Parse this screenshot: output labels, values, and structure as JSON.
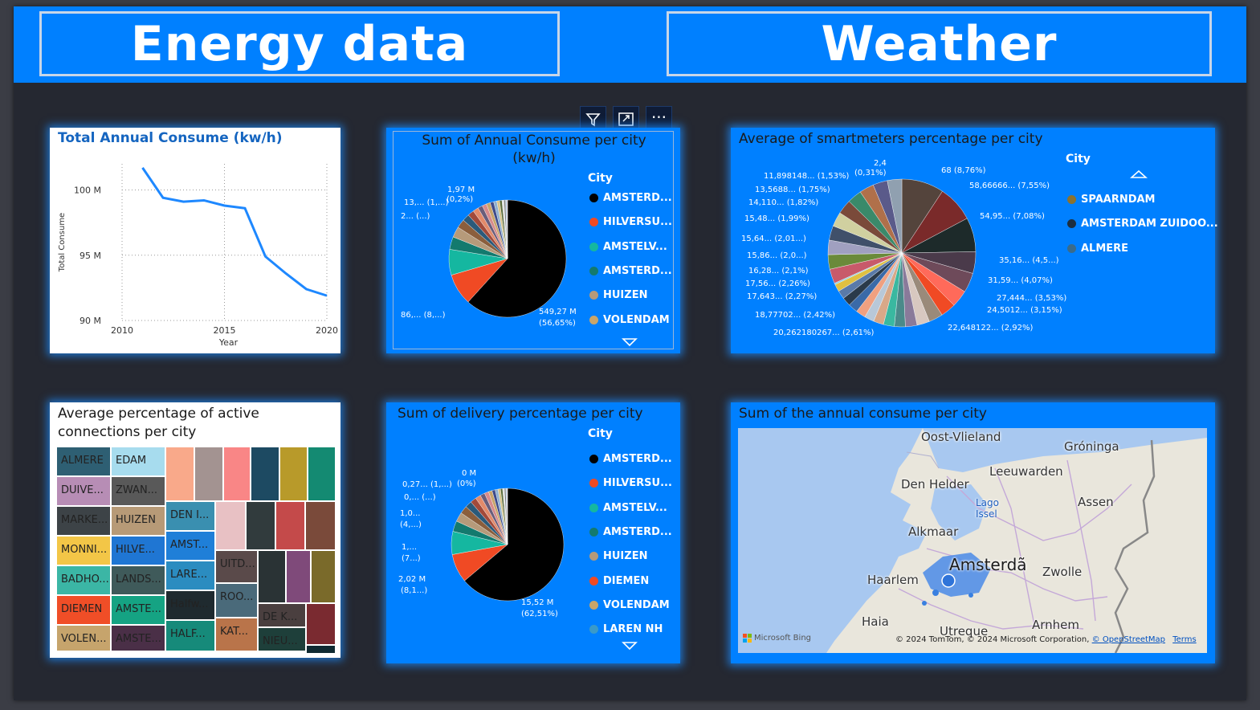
{
  "banner": {
    "energy_title": "Energy data",
    "weather_title": "Weather"
  },
  "toolbar": {
    "filter_icon": "filter-icon",
    "focus_icon": "focus-mode-icon",
    "more_icon": "more-options-icon",
    "more_label": "···"
  },
  "line_tile": {
    "title": "Total Annual Consume (kw/h)",
    "chart_data": {
      "type": "line",
      "title": "Total Annual Consume (kw/h)",
      "xlabel": "Year",
      "ylabel": "Total Consume",
      "x": [
        2011,
        2012,
        2013,
        2014,
        2015,
        2016,
        2017,
        2018,
        2019,
        2020
      ],
      "values": [
        101.7,
        99.4,
        99.1,
        99.2,
        98.8,
        98.6,
        94.9,
        93.6,
        92.4,
        91.9
      ],
      "ylim": [
        90,
        102
      ],
      "xlim": [
        2010,
        2020
      ],
      "yticks": [
        "100 M",
        "95 M",
        "90 M"
      ],
      "xticks": [
        "2010",
        "2015",
        "2020"
      ],
      "color": "#1e88ff"
    }
  },
  "pie1": {
    "title": "Sum of Annual Consume per city (kw/h)",
    "legend_title": "City",
    "legend": [
      {
        "name": "AMSTERD...",
        "color": "#000000"
      },
      {
        "name": "HILVERSU...",
        "color": "#f04a24"
      },
      {
        "name": "AMSTELV...",
        "color": "#15b7a0"
      },
      {
        "name": "AMSTERD...",
        "color": "#137a6e"
      },
      {
        "name": "HUIZEN",
        "color": "#b69a7a"
      },
      {
        "name": "VOLENDAM",
        "color": "#c8a56a"
      }
    ],
    "chart_data": {
      "type": "pie",
      "slices": [
        56.65,
        8.0,
        6.5,
        3.2,
        2.7,
        2.2,
        1.8,
        1.6,
        1.4,
        1.2,
        1.1,
        1.0,
        0.9,
        0.8,
        0.7,
        0.6,
        0.5,
        0.4,
        0.3,
        0.2
      ],
      "colors": [
        "#000000",
        "#f04a24",
        "#15b7a0",
        "#137a6e",
        "#b69a7a",
        "#8b5e3c",
        "#2b5a7a",
        "#a34a3a",
        "#e38a6a",
        "#6a5d7a",
        "#d88b8b",
        "#c8a56a",
        "#3e4b8a",
        "#8fb0d0",
        "#d6c48a",
        "#5a6a3a",
        "#e0e0e0",
        "#7a7a7a",
        "#a0c0e0",
        "#e0c0d0"
      ],
      "labels": [
        "1,97 M",
        "(0,2%)",
        "13,... (1,...)",
        "2... (...)",
        "86,... (8,...)",
        "549,27 M",
        "(56,65%)"
      ]
    }
  },
  "pie3": {
    "title": "Average of smartmeters percentage per city",
    "legend_title": "City",
    "legend": [
      {
        "name": "SPAARNDAM",
        "color": "#8a7230"
      },
      {
        "name": "AMSTERDAM ZUIDOO...",
        "color": "#1d2e3f"
      },
      {
        "name": "ALMERE",
        "color": "#3a6b8a"
      }
    ],
    "chart_data": {
      "type": "pie",
      "slices": [
        8.76,
        7.55,
        7.08,
        4.5,
        4.07,
        3.53,
        3.15,
        2.92,
        2.61,
        2.42,
        2.27,
        2.26,
        2.1,
        2.0,
        2.01,
        1.99,
        1.82,
        1.75,
        1.53,
        0.31,
        3.0,
        3.0,
        3.0,
        3.0,
        3.0,
        3.0,
        3.0,
        3.0,
        3.0,
        3.0
      ],
      "colors": [
        "#54443c",
        "#7a2a2a",
        "#1d2a2a",
        "#4a3a4a",
        "#6e4a5a",
        "#ff6a5a",
        "#f04a24",
        "#9a8a7a",
        "#d8c8c0",
        "#8a7a9a",
        "#4a8a8a",
        "#3ab8a0",
        "#d8a888",
        "#b8c8d8",
        "#f0a080",
        "#3a6aa8",
        "#2a3a4a",
        "#5a7aa8",
        "#e0c040",
        "#8ad0e0",
        "#c85a6a",
        "#6a8a3a",
        "#a0a0c0",
        "#40506a",
        "#d0d0a0",
        "#7a4a3a",
        "#3a8a6a",
        "#b0704a",
        "#5a5a8a",
        "#90a0b0"
      ],
      "labels": [
        "68 (8,76%)",
        "58,66666... (7,55%)",
        "54,95... (7,08%)",
        "35,16... (4,5...)",
        "31,59... (4,07%)",
        "27,444... (3,53%)",
        "24,5012... (3,15%)",
        "22,648122... (2,92%)",
        "20,262180267... (2,61%)",
        "18,77702... (2,42%)",
        "17,643... (2,27%)",
        "17,56... (2,26%)",
        "16,28... (2,1%)",
        "15,86... (2,0...)",
        "15,64... (2,01...)",
        "15,48... (1,99%)",
        "14,110... (1,82%)",
        "13,5688... (1,75%)",
        "11,898148... (1,53%)",
        "2,4",
        "(0,31%)"
      ]
    }
  },
  "treemap": {
    "title_line1": "Average percentage of active",
    "title_line2": "connections per city",
    "cells": [
      {
        "label": "ALMERE",
        "color": "#2e5f73"
      },
      {
        "label": "EDAM",
        "color": "#a7dcee"
      },
      {
        "label": "DUIVE...",
        "color": "#b78db5"
      },
      {
        "label": "ZWAN...",
        "color": "#595959"
      },
      {
        "label": "MARKE...",
        "color": "#3d4347"
      },
      {
        "label": "HUIZEN",
        "color": "#b79a77"
      },
      {
        "label": "MONNI...",
        "color": "#f3c647"
      },
      {
        "label": "HILVE...",
        "color": "#1f76d3"
      },
      {
        "label": "BADHO...",
        "color": "#3bb6a5"
      },
      {
        "label": "LANDS...",
        "color": "#3f5a5a"
      },
      {
        "label": "DIEMEN",
        "color": "#f04e27"
      },
      {
        "label": "AMSTE...",
        "color": "#15a383"
      },
      {
        "label": "VOLEN...",
        "color": "#c6a46c"
      },
      {
        "label": "AMSTE...",
        "color": "#4a2f47"
      },
      {
        "label": "DEN I...",
        "color": "#3a8fb0"
      },
      {
        "label": "AMST...",
        "color": "#1f7fd8"
      },
      {
        "label": "LARE...",
        "color": "#2b8cc0"
      },
      {
        "label": "Halfw...",
        "color": "#1f2a2f"
      },
      {
        "label": "HALF...",
        "color": "#168a7a"
      },
      {
        "label": "UITD...",
        "color": "#5a4a4a"
      },
      {
        "label": "ROO...",
        "color": "#4a6a7a"
      },
      {
        "label": "KAT...",
        "color": "#b9744a"
      },
      {
        "label": "DE K...",
        "color": "#4a3f3f"
      },
      {
        "label": "NIEU...",
        "color": "#1e3f3a"
      }
    ]
  },
  "pie2": {
    "title": "Sum of delivery percentage per city",
    "legend_title": "City",
    "legend": [
      {
        "name": "AMSTERD...",
        "color": "#000000"
      },
      {
        "name": "HILVERSU...",
        "color": "#f04a24"
      },
      {
        "name": "AMSTELV...",
        "color": "#15b7a0"
      },
      {
        "name": "AMSTERD...",
        "color": "#137a6e"
      },
      {
        "name": "HUIZEN",
        "color": "#b69a7a"
      },
      {
        "name": "DIEMEN",
        "color": "#f04a24"
      },
      {
        "name": "VOLENDAM",
        "color": "#c8a56a"
      },
      {
        "name": "LAREN NH",
        "color": "#3a9ac8"
      }
    ],
    "chart_data": {
      "type": "pie",
      "slices": [
        62.51,
        8.1,
        6.5,
        3.0,
        2.6,
        2.2,
        1.9,
        1.7,
        1.5,
        1.3,
        1.2,
        1.0,
        0.9,
        0.8,
        0.7,
        0.6,
        0.5,
        0.4,
        0.27,
        0.2
      ],
      "colors": [
        "#000000",
        "#f04a24",
        "#15b7a0",
        "#137a6e",
        "#b69a7a",
        "#8b5e3c",
        "#2b5a7a",
        "#a34a3a",
        "#e38a6a",
        "#6a5d7a",
        "#d88b8b",
        "#c8a56a",
        "#3e4b8a",
        "#8fb0d0",
        "#d6c48a",
        "#5a6a3a",
        "#e0e0e0",
        "#7a7a7a",
        "#a0c0e0",
        "#e0c0d0"
      ],
      "labels": [
        "0 M",
        "(0%)",
        "0,27... (1,...)",
        "0,... (...)",
        "1,0...",
        "(4,...)",
        "1,...",
        "(7...)",
        "2,02 M",
        "(8,1...)",
        "15,52 M",
        "(62,51%)"
      ]
    }
  },
  "map": {
    "title": "Sum of the annual consume per city",
    "places": [
      "Oost-Vlieland",
      "Gróninga",
      "Leeuwarden",
      "Den Helder",
      "Lago Issel",
      "Assen",
      "Alkmaar",
      "Amsterdã",
      "Zwolle",
      "Haarlem",
      "Haia",
      "Utreque",
      "Arnhem"
    ],
    "logo": "Microsoft Bing",
    "attribution": "© 2024 TomTom, © 2024 Microsoft Corporation,",
    "osm": "© OpenStreetMap",
    "terms": "Terms"
  }
}
